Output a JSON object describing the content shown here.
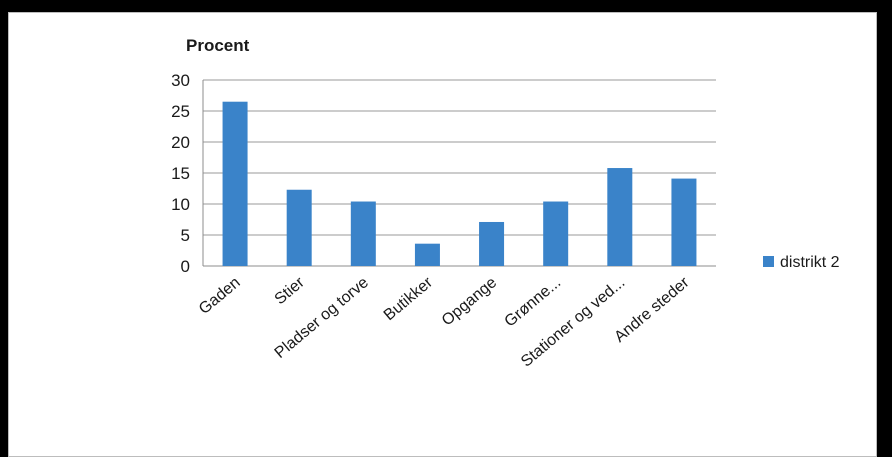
{
  "chart_data": {
    "type": "bar",
    "ylabel": "Procent",
    "categories": [
      "Gaden",
      "Stier",
      "Pladser og torve",
      "Butikker",
      "Opgange",
      "Grønne...",
      "Stationer og ved...",
      "Andre steder"
    ],
    "series": [
      {
        "name": "distrikt 2",
        "values": [
          26.5,
          12.3,
          10.4,
          3.6,
          7.1,
          10.4,
          15.8,
          14.1
        ],
        "color": "#3a83c9"
      }
    ],
    "ylim": [
      0,
      30
    ],
    "yticks": [
      "0",
      "5",
      "10",
      "15",
      "20",
      "25",
      "30"
    ],
    "grid": true,
    "legend": "right"
  }
}
